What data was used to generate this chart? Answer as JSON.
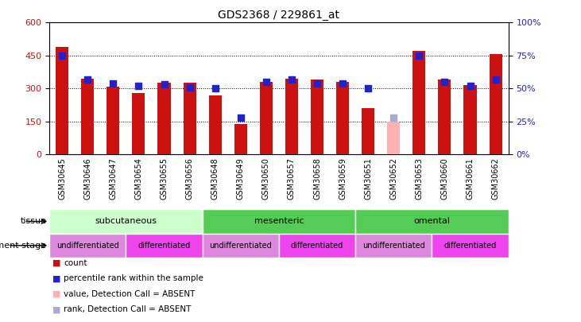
{
  "title": "GDS2368 / 229861_at",
  "samples": [
    "GSM30645",
    "GSM30646",
    "GSM30647",
    "GSM30654",
    "GSM30655",
    "GSM30656",
    "GSM30648",
    "GSM30649",
    "GSM30650",
    "GSM30657",
    "GSM30658",
    "GSM30659",
    "GSM30651",
    "GSM30652",
    "GSM30653",
    "GSM30660",
    "GSM30661",
    "GSM30662"
  ],
  "count_values": [
    490,
    345,
    310,
    278,
    325,
    325,
    270,
    140,
    330,
    345,
    340,
    330,
    210,
    null,
    470,
    340,
    315,
    455
  ],
  "count_absent": [
    false,
    false,
    false,
    false,
    false,
    false,
    false,
    false,
    false,
    false,
    false,
    false,
    false,
    true,
    false,
    false,
    false,
    false
  ],
  "count_absent_values": [
    null,
    null,
    null,
    null,
    null,
    null,
    null,
    null,
    null,
    null,
    null,
    null,
    null,
    150,
    null,
    null,
    null,
    null
  ],
  "rank_values": [
    75,
    57,
    54,
    52,
    53,
    51,
    50,
    28,
    55,
    57,
    54,
    54,
    50,
    null,
    75,
    55,
    52,
    57
  ],
  "rank_absent": [
    false,
    false,
    false,
    false,
    false,
    false,
    false,
    false,
    false,
    false,
    false,
    false,
    false,
    true,
    false,
    false,
    false,
    false
  ],
  "rank_absent_values": [
    null,
    null,
    null,
    null,
    null,
    null,
    null,
    null,
    null,
    null,
    null,
    null,
    null,
    28,
    null,
    null,
    null,
    null
  ],
  "ylim_left": [
    0,
    600
  ],
  "ylim_right": [
    0,
    100
  ],
  "yticks_left": [
    0,
    150,
    300,
    450,
    600
  ],
  "yticks_right": [
    0,
    25,
    50,
    75,
    100
  ],
  "color_red": "#CC1111",
  "color_blue": "#2222CC",
  "color_pink": "#FFB0B0",
  "color_lightblue": "#AAAACC",
  "bar_width": 0.5,
  "rank_marker_size": 40,
  "tissue_rows": [
    {
      "label": "subcutaneous",
      "start": 0,
      "end": 6,
      "color": "#CCFFCC"
    },
    {
      "label": "mesenteric",
      "start": 6,
      "end": 12,
      "color": "#55CC55"
    },
    {
      "label": "omental",
      "start": 12,
      "end": 18,
      "color": "#55CC55"
    }
  ],
  "dev_rows": [
    {
      "label": "undifferentiated",
      "start": 0,
      "end": 3,
      "color": "#DD88DD"
    },
    {
      "label": "differentiated",
      "start": 3,
      "end": 6,
      "color": "#EE44EE"
    },
    {
      "label": "undifferentiated",
      "start": 6,
      "end": 9,
      "color": "#DD88DD"
    },
    {
      "label": "differentiated",
      "start": 9,
      "end": 12,
      "color": "#EE44EE"
    },
    {
      "label": "undifferentiated",
      "start": 12,
      "end": 15,
      "color": "#DD88DD"
    },
    {
      "label": "differentiated",
      "start": 15,
      "end": 18,
      "color": "#EE44EE"
    }
  ],
  "legend_items": [
    {
      "color": "#CC1111",
      "label": "count"
    },
    {
      "color": "#2222CC",
      "label": "percentile rank within the sample"
    },
    {
      "color": "#FFB0B0",
      "label": "value, Detection Call = ABSENT"
    },
    {
      "color": "#AAAACC",
      "label": "rank, Detection Call = ABSENT"
    }
  ]
}
